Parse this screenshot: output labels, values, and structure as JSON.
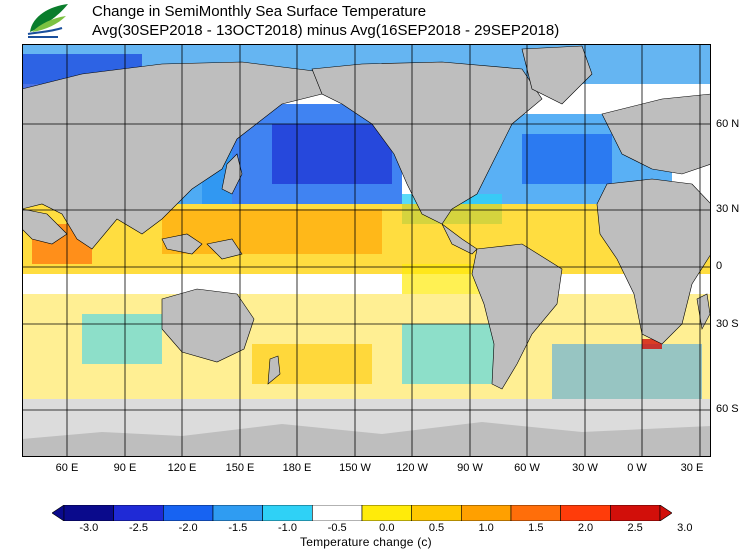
{
  "header": {
    "title": "Change in SemiMonthly Sea Surface Temperature",
    "subtitle": "Avg(30SEP2018 - 13OCT2018) minus Avg(16SEP2018 - 29SEP2018)"
  },
  "logo": {
    "icon": "cwb-leaf-logo",
    "colors": [
      "#0a7d2c",
      "#7cc242",
      "#1a4f9c"
    ]
  },
  "map": {
    "land_color": "#bebebe",
    "ice_color": "#dcdcdc",
    "grid_color": "#000000",
    "lat_labels": [
      "60 N",
      "30 N",
      "0",
      "30 S",
      "60 S"
    ],
    "lon_labels": [
      "60 E",
      "90 E",
      "120 E",
      "150 E",
      "180 E",
      "150 W",
      "120 W",
      "90 W",
      "60 W",
      "30 W",
      "0 W",
      "30 E"
    ]
  },
  "colorbar": {
    "ticks": [
      "-3.0",
      "-2.5",
      "-2.0",
      "-1.5",
      "-1.0",
      "-0.5",
      "0.0",
      "0.5",
      "1.0",
      "1.5",
      "2.0",
      "2.5",
      "3.0"
    ],
    "colors": [
      "#0a0a8c",
      "#1f2ad6",
      "#1763f2",
      "#2f9cf2",
      "#2fd1f6",
      "#ffffff",
      "#ffeb0a",
      "#ffc800",
      "#ffa000",
      "#ff6e0a",
      "#ff3c0a",
      "#d20f0a"
    ],
    "label": "Temperature change  (c)"
  }
}
